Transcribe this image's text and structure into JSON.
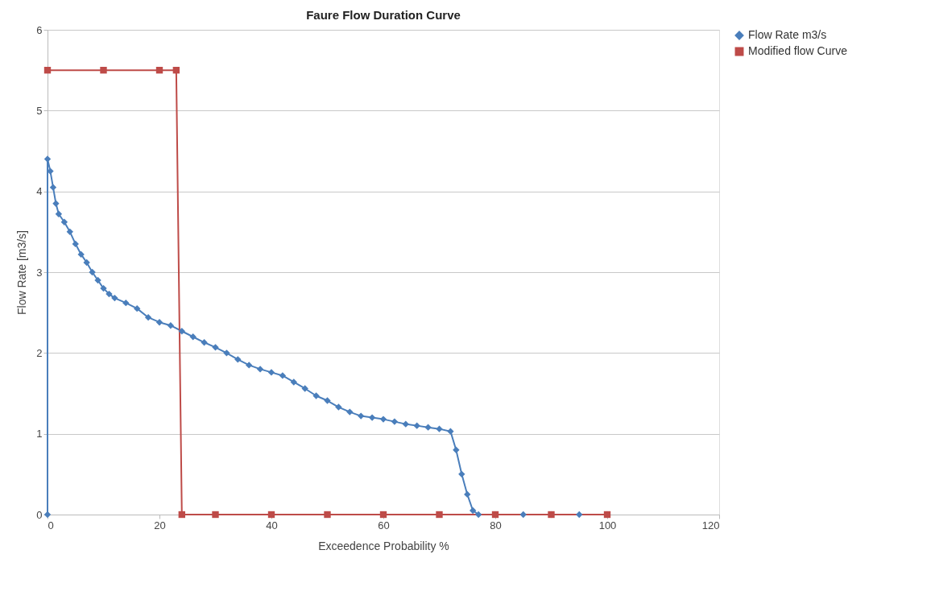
{
  "chart_data": {
    "type": "line",
    "title": "Faure Flow Duration Curve",
    "xlabel": "Exceedence Probability %",
    "ylabel": "Flow Rate [m3/s]",
    "xlim": [
      0,
      120
    ],
    "xticks": [
      0,
      20,
      40,
      60,
      80,
      100,
      120
    ],
    "ylim": [
      0,
      6
    ],
    "yticks": [
      0,
      1,
      2,
      3,
      4,
      5,
      6
    ],
    "grid": "y",
    "legend": "right",
    "line_style": "solid",
    "series": [
      {
        "name": "Flow Rate m3/s",
        "color": "#4a7ebb",
        "marker": "diamond",
        "x": [
          0,
          0,
          0.5,
          1,
          1.5,
          2,
          3,
          4,
          5,
          6,
          7,
          8,
          9,
          10,
          11,
          12,
          14,
          16,
          18,
          20,
          22,
          24,
          26,
          28,
          30,
          32,
          34,
          36,
          38,
          40,
          42,
          44,
          46,
          48,
          50,
          52,
          54,
          56,
          58,
          60,
          62,
          64,
          66,
          68,
          70,
          72,
          73,
          74,
          75,
          76,
          77,
          80,
          85,
          90,
          95,
          100
        ],
        "values": [
          0,
          4.4,
          4.25,
          4.05,
          3.85,
          3.72,
          3.62,
          3.5,
          3.35,
          3.22,
          3.12,
          3.0,
          2.9,
          2.8,
          2.73,
          2.68,
          2.62,
          2.55,
          2.44,
          2.38,
          2.34,
          2.27,
          2.2,
          2.13,
          2.07,
          2.0,
          1.92,
          1.85,
          1.8,
          1.76,
          1.72,
          1.64,
          1.56,
          1.47,
          1.41,
          1.33,
          1.27,
          1.22,
          1.2,
          1.18,
          1.15,
          1.12,
          1.1,
          1.08,
          1.06,
          1.03,
          0.8,
          0.5,
          0.25,
          0.05,
          0,
          0,
          0,
          0,
          0,
          0
        ]
      },
      {
        "name": "Modified flow Curve",
        "color": "#be4b48",
        "marker": "square",
        "x": [
          0,
          10,
          20,
          23,
          24,
          30,
          40,
          50,
          60,
          70,
          80,
          90,
          100
        ],
        "values": [
          5.5,
          5.5,
          5.5,
          5.5,
          0,
          0,
          0,
          0,
          0,
          0,
          0,
          0,
          0
        ]
      }
    ]
  }
}
